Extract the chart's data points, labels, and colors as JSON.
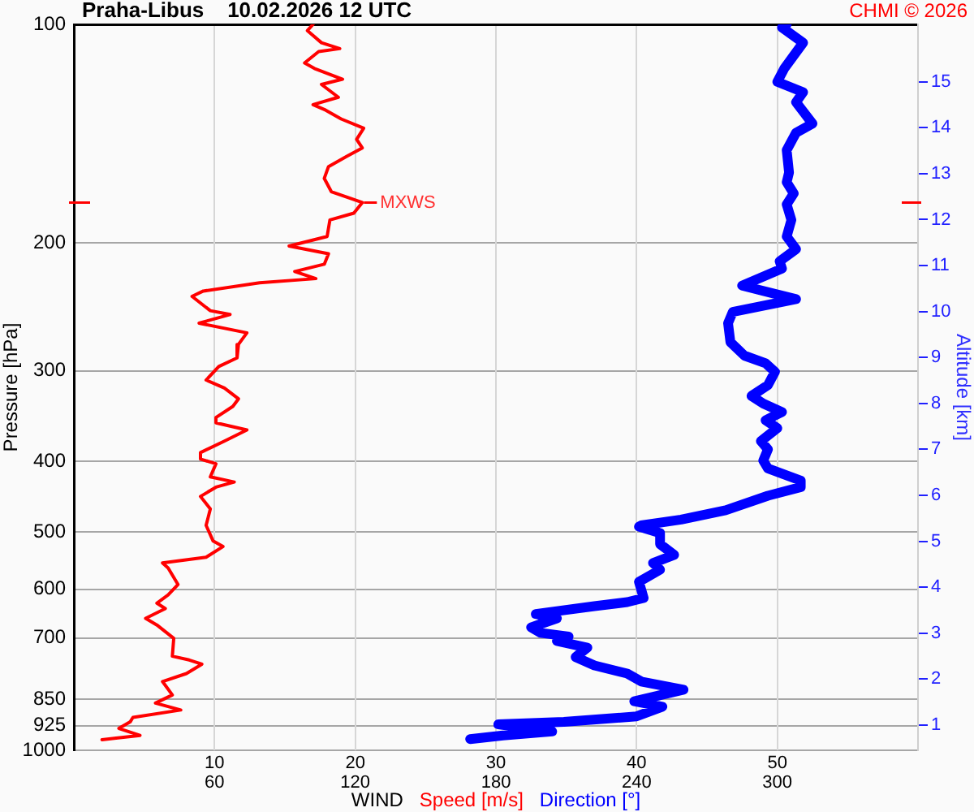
{
  "chart_data": {
    "type": "line",
    "title": "Praha-Libus    10.02.2026 12 UTC",
    "xlabel": "WIND",
    "ylabel": "Pressure [hPa]",
    "y2label": "Altitude [km]",
    "annotations": [
      "CHMI © 2026",
      {
        "text": "MXWS",
        "x": 20.5,
        "y": 176
      }
    ],
    "series": [
      {
        "name": "Speed [m/s]",
        "color": "#ff0000",
        "x": [
          17.0,
          16.6,
          17.6,
          18.9,
          17.4,
          16.4,
          17.1,
          19.1,
          17.6,
          18.8,
          17.0,
          17.8,
          19.0,
          20.6,
          20.1,
          20.5,
          19.4,
          18.1,
          17.8,
          18.3,
          19.8,
          20.5,
          19.9,
          18.2,
          18.0,
          15.3,
          18.1,
          17.8,
          15.7,
          17.2,
          13.2,
          9.2,
          8.4,
          9.7,
          11.1,
          8.9,
          12.3,
          11.7,
          11.6,
          10.3,
          9.4,
          10.7,
          11.7,
          11.3,
          10.1,
          10.1,
          12.3,
          10.7,
          9.0,
          9.0,
          10.1,
          9.7,
          11.4,
          10.1,
          9.0,
          9.7,
          9.4,
          9.9,
          10.6,
          9.4,
          6.3,
          6.7,
          7.4,
          6.7,
          5.9,
          6.5,
          5.1,
          5.9,
          7.1,
          7.0,
          8.2,
          9.1,
          8.0,
          6.3,
          7.0,
          5.8,
          7.6,
          4.2,
          4.0,
          3.2,
          4.7,
          3.0,
          2.0
        ],
        "values": [
          100,
          102,
          106,
          108,
          109,
          113,
          115,
          119,
          121,
          126,
          129,
          131,
          135,
          139,
          144,
          148,
          152,
          157,
          163,
          170,
          174,
          176,
          182,
          186,
          196,
          202,
          207,
          214,
          219,
          224,
          227,
          233,
          237,
          248,
          251,
          258,
          266,
          276,
          288,
          296,
          309,
          317,
          328,
          336,
          348,
          354,
          362,
          375,
          389,
          397,
          403,
          420,
          427,
          434,
          447,
          465,
          490,
          515,
          524,
          542,
          552,
          561,
          591,
          611,
          627,
          638,
          658,
          672,
          701,
          742,
          751,
          761,
          784,
          804,
          839,
          861,
          880,
          901,
          914,
          933,
          954,
          962,
          967
        ]
      },
      {
        "name": "Direction [°]",
        "color": "#0000ff",
        "axis": "x2",
        "x": [
          304,
          302,
          311,
          303,
          300,
          311,
          308,
          315,
          308,
          304,
          305,
          304,
          307,
          304,
          306,
          304,
          308,
          301,
          302,
          285,
          301,
          308,
          281,
          279,
          280,
          286,
          295,
          299,
          296,
          289,
          294,
          302,
          295,
          300,
          293,
          296,
          294,
          296,
          310,
          310,
          296,
          278,
          259,
          242,
          241,
          250,
          250,
          256,
          247,
          250,
          241,
          243,
          236,
          222,
          197,
          206,
          195,
          199,
          211,
          206,
          219,
          214,
          222,
          236,
          242,
          260,
          239,
          251,
          240,
          209,
          181,
          204,
          183,
          169
        ],
        "values": [
          100,
          101,
          106,
          115,
          120,
          124,
          128,
          137,
          141,
          149,
          160,
          165,
          171,
          177,
          186,
          196,
          204,
          212,
          217,
          229,
          236,
          239,
          249,
          258,
          274,
          286,
          293,
          301,
          314,
          325,
          333,
          342,
          351,
          360,
          375,
          385,
          399,
          409,
          425,
          434,
          446,
          467,
          481,
          490,
          492,
          502,
          520,
          538,
          552,
          564,
          586,
          617,
          625,
          633,
          649,
          658,
          677,
          689,
          697,
          707,
          722,
          744,
          764,
          784,
          804,
          825,
          856,
          871,
          898,
          914,
          921,
          942,
          954,
          965
        ]
      }
    ],
    "xlim": [
      0,
      60
    ],
    "xticks": [
      10,
      20,
      30,
      40,
      50
    ],
    "x2lim": [
      0,
      360
    ],
    "x2ticks": [
      60,
      120,
      180,
      240,
      300
    ],
    "ylim": [
      1000,
      100
    ],
    "yticks": [
      100,
      200,
      300,
      400,
      500,
      600,
      700,
      850,
      925,
      1000
    ],
    "y2lim": [
      0.45,
      16.25
    ],
    "y2ticks": [
      1,
      2,
      3,
      4,
      5,
      6,
      7,
      8,
      9,
      10,
      11,
      12,
      13,
      14,
      15
    ],
    "log": true,
    "grid": true,
    "legend": "bottom"
  }
}
